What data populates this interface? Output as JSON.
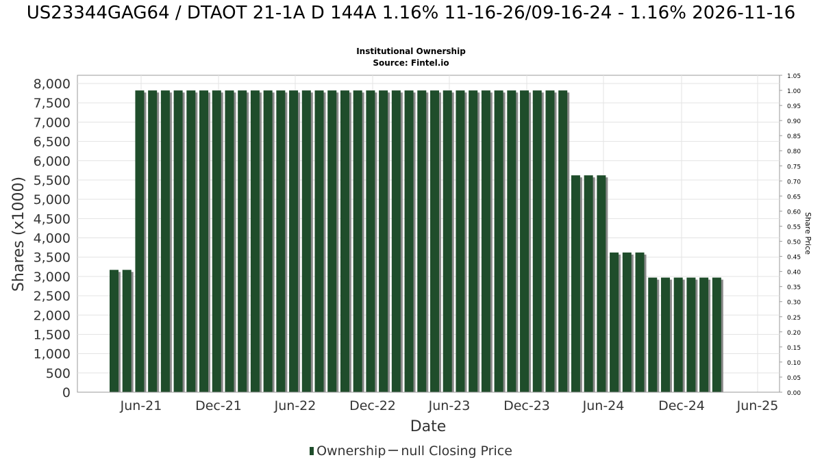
{
  "title": "US23344GAG64 / DTAOT 21-1A D 144A 1.16% 11-16-26/09-16-24 - 1.16% 2026-11-16",
  "subtitle_1": "Institutional Ownership",
  "subtitle_2": "Source: Fintel.io",
  "legend": {
    "ownership": "Ownership",
    "price": "null Closing Price"
  },
  "colors": {
    "bar": "#1f4d2b",
    "bar_shadow": "#8a8a8a",
    "grid": "#e3e3e3",
    "axis_text": "#333333"
  },
  "chart_data": {
    "type": "bar",
    "xlabel": "Date",
    "ylabel": "Shares (x1000)",
    "y2label": "Share Price",
    "ylim": [
      0,
      8000
    ],
    "y2lim": [
      0,
      1.05
    ],
    "yticks": [
      "0",
      "500",
      "1,000",
      "1,500",
      "2,000",
      "2,500",
      "3,000",
      "3,500",
      "4,000",
      "4,500",
      "5,000",
      "5,500",
      "6,000",
      "6,500",
      "7,000",
      "7,500",
      "8,000"
    ],
    "y2ticks": [
      "0.00",
      "0.05",
      "0.10",
      "0.15",
      "0.20",
      "0.25",
      "0.30",
      "0.35",
      "0.40",
      "0.45",
      "0.50",
      "0.55",
      "0.60",
      "0.65",
      "0.70",
      "0.75",
      "0.80",
      "0.85",
      "0.90",
      "0.95",
      "1.00",
      "1.05"
    ],
    "xticks": [
      "Jun-21",
      "Dec-21",
      "Jun-22",
      "Dec-22",
      "Jun-23",
      "Dec-23",
      "Jun-24",
      "Dec-24",
      "Jun-25"
    ],
    "grid": true,
    "series": [
      {
        "name": "Ownership",
        "values": [
          3170,
          3170,
          7820,
          7820,
          7820,
          7820,
          7820,
          7820,
          7820,
          7820,
          7820,
          7820,
          7820,
          7820,
          7820,
          7820,
          7820,
          7820,
          7820,
          7820,
          7820,
          7820,
          7820,
          7820,
          7820,
          7820,
          7820,
          7820,
          7820,
          7820,
          7820,
          7820,
          7820,
          7820,
          7820,
          7820,
          5620,
          5620,
          5620,
          3620,
          3620,
          3620,
          2970,
          2970,
          2970,
          2970,
          2970,
          2970
        ]
      }
    ]
  }
}
